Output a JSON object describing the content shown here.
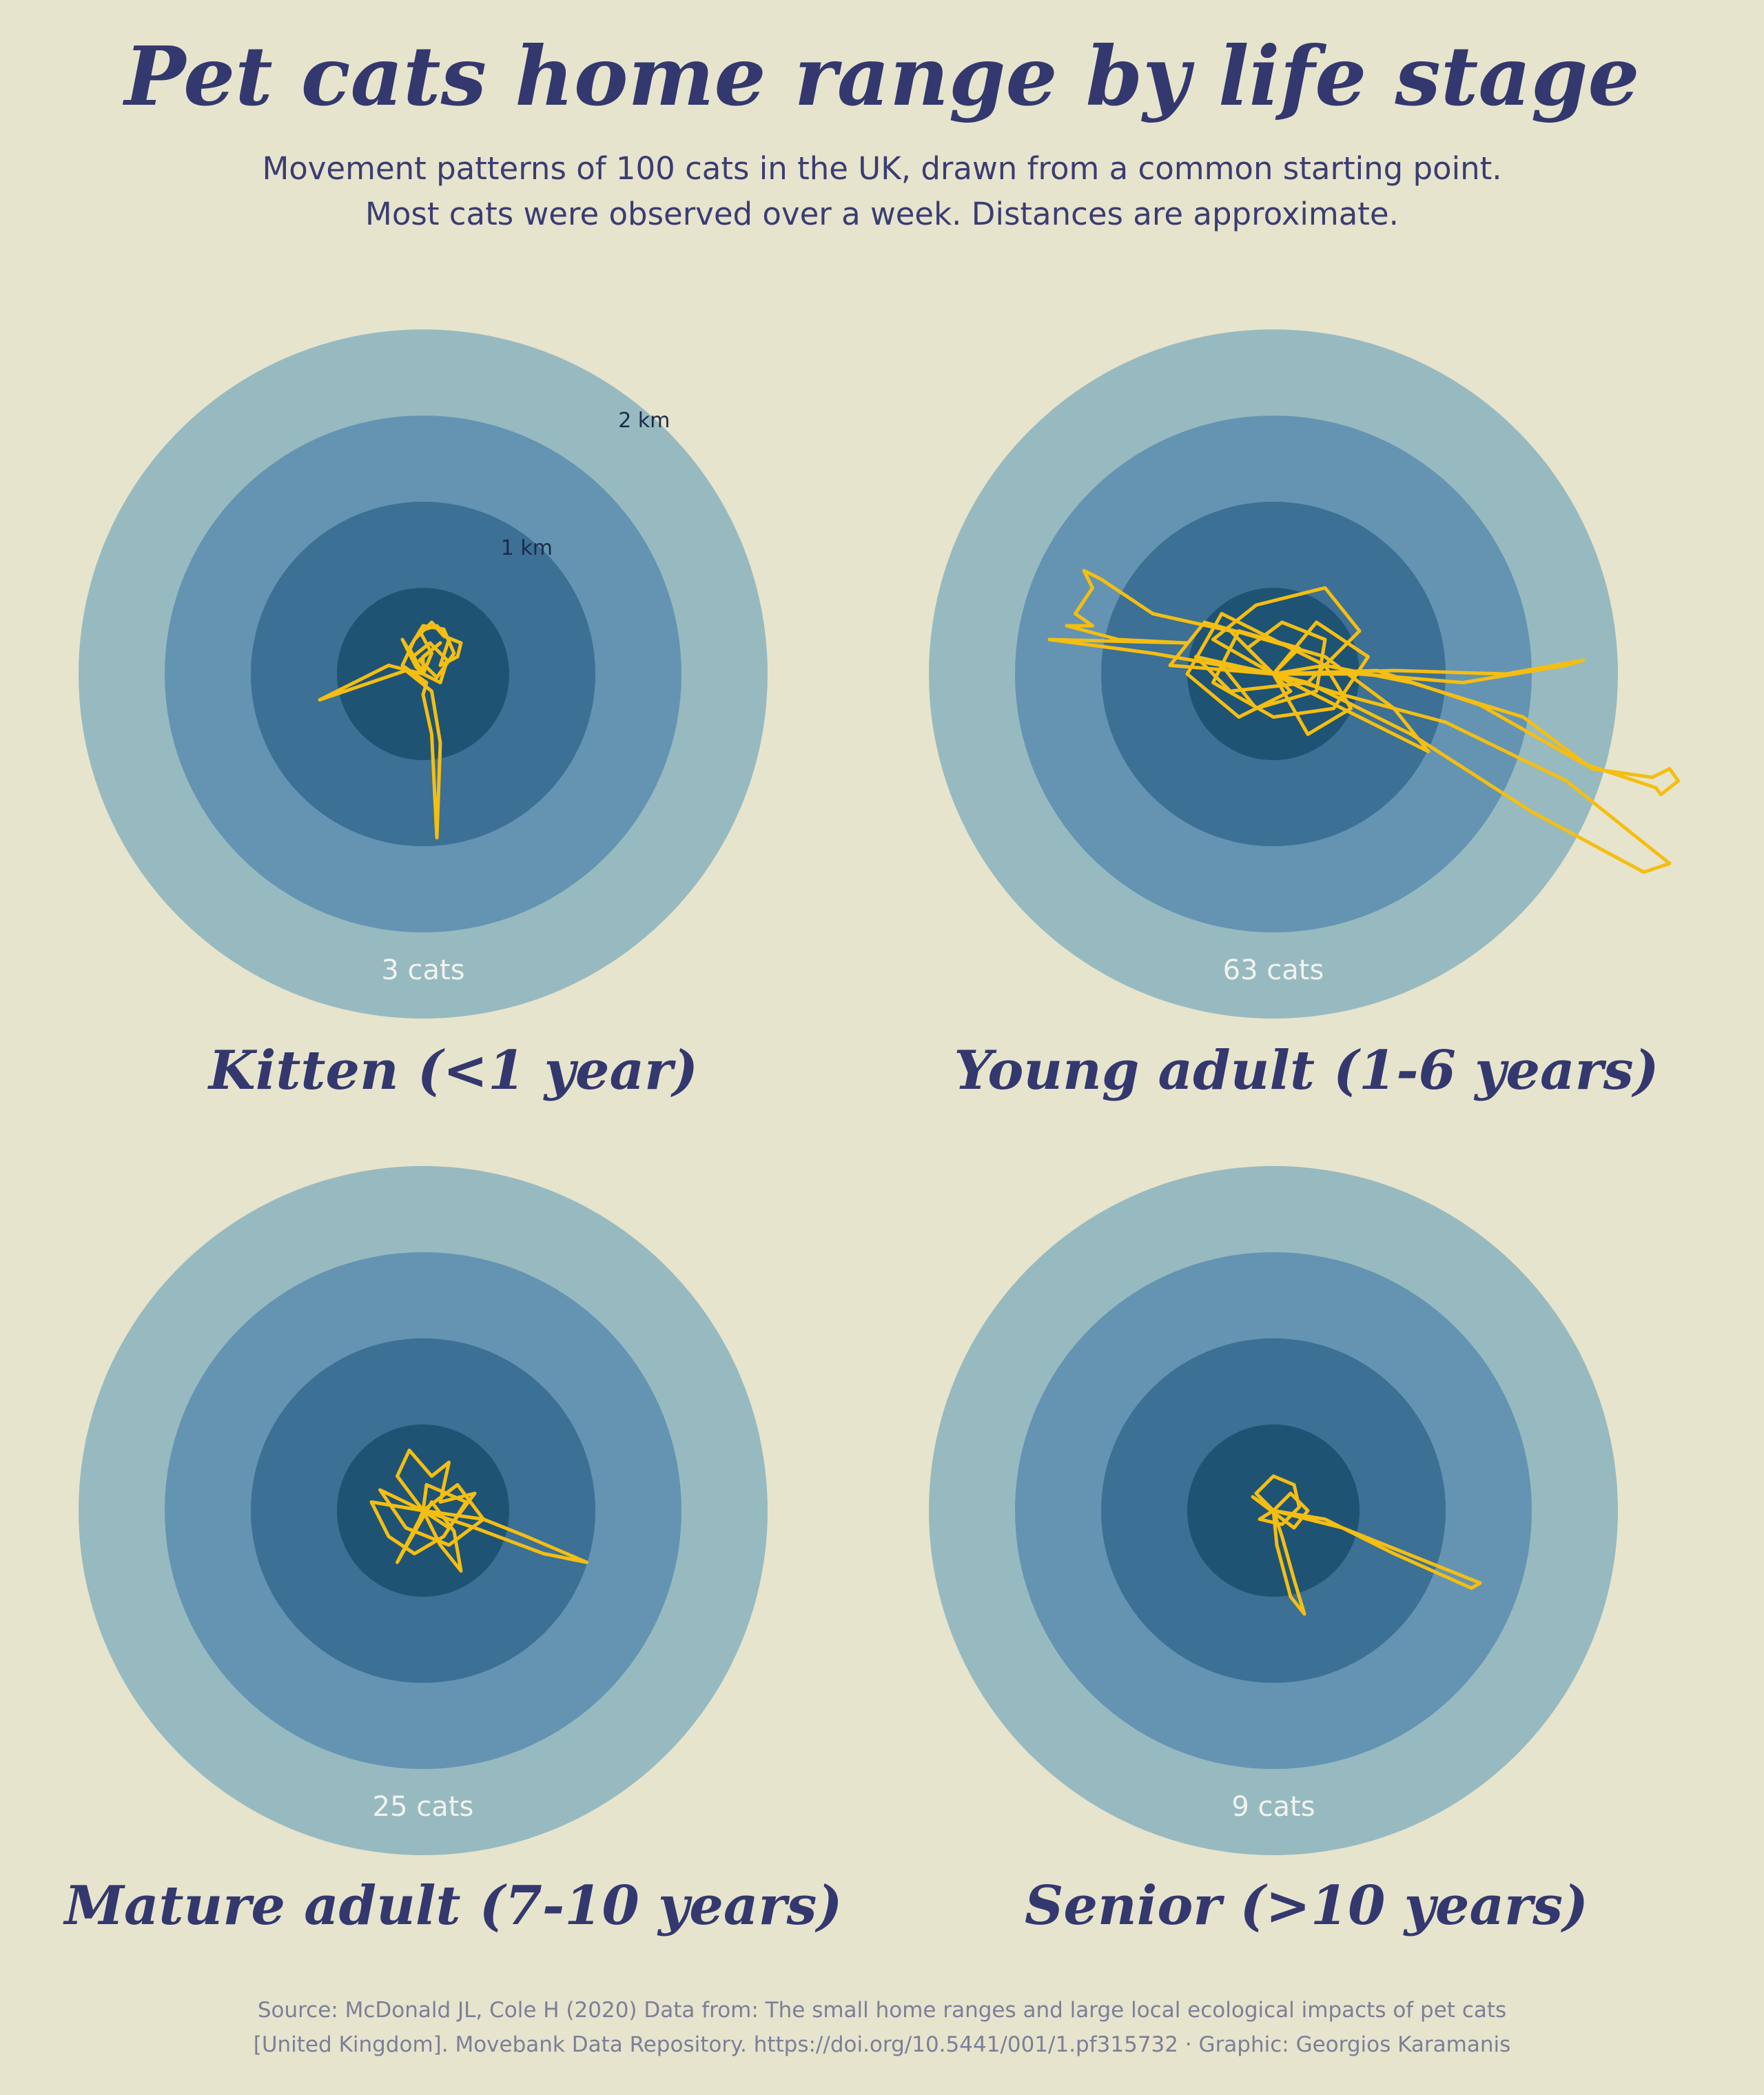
{
  "header": {
    "title": "Pet cats home range by life stage",
    "subtitle_line1": "Movement patterns of 100 cats in the UK, drawn from a common starting point.",
    "subtitle_line2": "Most cats were observed over a week. Distances are approximate."
  },
  "caption": {
    "line1": "Source: McDonald JL, Cole H (2020) Data from: The small home ranges and large local ecological impacts of pet cats",
    "line2": "[United Kingdom]. Movebank Data Repository. https://doi.org/10.5441/001/1.pf315732 · Graphic: Georgios Karamanis"
  },
  "colors": {
    "background": "#e7e4cd",
    "ring_colors": [
      "#97bac0",
      "#6494b2",
      "#3c7094",
      "#1f5373"
    ],
    "track_color": "#f4be13",
    "text_color": "#33386e"
  },
  "chart_data": {
    "type": "polar-track",
    "ring_radii_km": [
      2,
      1.5,
      1,
      0.5
    ],
    "ring_labels": [
      {
        "radius_km": 2,
        "text": "2 km"
      },
      {
        "radius_km": 1,
        "text": "1 km"
      }
    ],
    "panels": [
      {
        "label": "Kitten  (<1 year)",
        "count_label": "3 cats",
        "cats": 3,
        "tracks": [
          [
            [
              0,
              0
            ],
            [
              0.05,
              0.12
            ],
            [
              -0.02,
              0.25
            ],
            [
              0.08,
              0.28
            ],
            [
              0.15,
              0.2
            ],
            [
              0.1,
              0.05
            ],
            [
              0.2,
              0.1
            ],
            [
              0.22,
              0.18
            ],
            [
              0.12,
              0.22
            ],
            [
              0.05,
              0.3
            ],
            [
              -0.05,
              0.2
            ],
            [
              -0.12,
              0.05
            ],
            [
              0.02,
              -0.05
            ],
            [
              0.0,
              -0.12
            ],
            [
              0.05,
              -0.35
            ],
            [
              0.08,
              -0.95
            ],
            [
              0.1,
              -0.4
            ],
            [
              0.05,
              -0.1
            ],
            [
              -0.1,
              0.02
            ],
            [
              -0.6,
              -0.15
            ],
            [
              -0.2,
              0.05
            ],
            [
              0,
              0
            ]
          ],
          [
            [
              0,
              0
            ],
            [
              -0.08,
              0.15
            ],
            [
              0.0,
              0.28
            ],
            [
              0.12,
              0.26
            ],
            [
              0.18,
              0.12
            ],
            [
              0.08,
              -0.02
            ],
            [
              -0.02,
              0.08
            ],
            [
              0.1,
              0.18
            ],
            [
              0.0,
              0.1
            ],
            [
              0,
              0
            ]
          ],
          [
            [
              0,
              0
            ],
            [
              0.1,
              -0.05
            ],
            [
              0.14,
              0.08
            ],
            [
              0.04,
              0.18
            ],
            [
              -0.06,
              0.1
            ],
            [
              -0.12,
              0.2
            ],
            [
              -0.04,
              0.04
            ],
            [
              0,
              0
            ]
          ]
        ]
      },
      {
        "label": "Young adult  (1-6 years)",
        "count_label": "63 cats",
        "cats": 63,
        "tracks": [
          [
            [
              0,
              0
            ],
            [
              0.3,
              0.05
            ],
            [
              0.8,
              -0.05
            ],
            [
              1.45,
              -0.25
            ],
            [
              1.85,
              -0.55
            ],
            [
              2.2,
              -0.6
            ],
            [
              2.3,
              -0.55
            ],
            [
              2.35,
              -0.62
            ],
            [
              2.25,
              -0.7
            ],
            [
              2.22,
              -0.66
            ],
            [
              1.8,
              -0.52
            ],
            [
              1.2,
              -0.18
            ],
            [
              0.6,
              0.02
            ],
            [
              0,
              0
            ]
          ],
          [
            [
              0,
              0
            ],
            [
              0.4,
              -0.12
            ],
            [
              1.0,
              -0.28
            ],
            [
              1.7,
              -0.62
            ],
            [
              2.3,
              -1.1
            ],
            [
              2.15,
              -1.15
            ],
            [
              1.5,
              -0.8
            ],
            [
              0.8,
              -0.35
            ],
            [
              0.2,
              -0.05
            ],
            [
              0,
              0
            ]
          ],
          [
            [
              0,
              0
            ],
            [
              0.5,
              0.0
            ],
            [
              1.1,
              -0.05
            ],
            [
              1.7,
              0.05
            ],
            [
              1.8,
              0.08
            ],
            [
              1.35,
              0.0
            ],
            [
              0.7,
              0.02
            ],
            [
              0,
              0
            ]
          ],
          [
            [
              0,
              0
            ],
            [
              -0.25,
              0.25
            ],
            [
              -0.7,
              0.35
            ],
            [
              -1.0,
              0.55
            ],
            [
              -1.1,
              0.6
            ],
            [
              -1.05,
              0.5
            ],
            [
              -1.15,
              0.35
            ],
            [
              -1.05,
              0.28
            ],
            [
              -1.2,
              0.28
            ],
            [
              -0.9,
              0.2
            ],
            [
              -0.5,
              0.18
            ],
            [
              -1.3,
              0.2
            ],
            [
              -0.7,
              0.12
            ],
            [
              -0.3,
              0.05
            ],
            [
              0,
              0
            ]
          ],
          [
            [
              0,
              0
            ],
            [
              -0.35,
              0.2
            ],
            [
              -0.1,
              0.4
            ],
            [
              0.3,
              0.5
            ],
            [
              0.5,
              0.25
            ],
            [
              0.2,
              -0.05
            ],
            [
              -0.25,
              -0.1
            ],
            [
              -0.45,
              0.1
            ],
            [
              0,
              0
            ]
          ],
          [
            [
              0,
              0
            ],
            [
              0.25,
              0.3
            ],
            [
              0.55,
              0.1
            ],
            [
              0.35,
              -0.2
            ],
            [
              0.0,
              -0.25
            ],
            [
              -0.35,
              -0.05
            ],
            [
              -0.2,
              0.25
            ],
            [
              0.15,
              0.15
            ],
            [
              0,
              0
            ]
          ],
          [
            [
              0,
              0
            ],
            [
              0.2,
              -0.35
            ],
            [
              0.45,
              -0.2
            ],
            [
              0.3,
              0.05
            ],
            [
              -0.3,
              0.35
            ],
            [
              -0.5,
              0.0
            ],
            [
              -0.2,
              -0.25
            ],
            [
              0.1,
              -0.1
            ],
            [
              0,
              0
            ]
          ],
          [
            [
              0,
              0
            ],
            [
              -0.15,
              0.15
            ],
            [
              0.05,
              0.3
            ],
            [
              0.3,
              0.2
            ],
            [
              0.25,
              -0.1
            ],
            [
              -0.1,
              -0.2
            ],
            [
              -0.3,
              0.05
            ],
            [
              0,
              0
            ]
          ],
          [
            [
              0,
              0
            ],
            [
              0.6,
              -0.3
            ],
            [
              0.9,
              -0.45
            ],
            [
              0.7,
              -0.2
            ],
            [
              0.3,
              0.1
            ],
            [
              -0.4,
              0.3
            ],
            [
              -0.6,
              0.05
            ],
            [
              0,
              0
            ]
          ]
        ]
      },
      {
        "label": "Mature adult  (7-10 years)",
        "count_label": "25 cats",
        "cats": 25,
        "tracks": [
          [
            [
              0,
              0
            ],
            [
              0.3,
              -0.1
            ],
            [
              0.7,
              -0.25
            ],
            [
              0.95,
              -0.3
            ],
            [
              0.6,
              -0.15
            ],
            [
              0.35,
              -0.05
            ],
            [
              0,
              0
            ]
          ],
          [
            [
              0,
              0
            ],
            [
              0.1,
              -0.2
            ],
            [
              0.22,
              -0.35
            ],
            [
              0.18,
              -0.12
            ],
            [
              0.05,
              0.05
            ],
            [
              -0.15,
              -0.3
            ],
            [
              -0.02,
              -0.05
            ],
            [
              0,
              0
            ]
          ],
          [
            [
              0,
              0
            ],
            [
              -0.15,
              0.2
            ],
            [
              -0.08,
              0.35
            ],
            [
              0.05,
              0.2
            ],
            [
              0.15,
              0.28
            ],
            [
              0.1,
              0.05
            ],
            [
              0.3,
              0.1
            ],
            [
              0.15,
              -0.1
            ],
            [
              0,
              0
            ]
          ],
          [
            [
              0,
              0
            ],
            [
              -0.3,
              0.05
            ],
            [
              -0.2,
              -0.15
            ],
            [
              -0.05,
              -0.25
            ],
            [
              0.12,
              -0.15
            ],
            [
              0.25,
              0.05
            ],
            [
              0.02,
              0.15
            ],
            [
              0,
              0
            ]
          ],
          [
            [
              0,
              0
            ],
            [
              0.2,
              0.15
            ],
            [
              0.35,
              -0.05
            ],
            [
              0.15,
              -0.2
            ],
            [
              -0.1,
              -0.1
            ],
            [
              -0.25,
              0.12
            ],
            [
              0,
              0
            ]
          ]
        ]
      },
      {
        "label": "Senior  (>10 years)",
        "count_label": "9 cats",
        "cats": 9,
        "tracks": [
          [
            [
              0,
              0
            ],
            [
              0.4,
              -0.1
            ],
            [
              0.9,
              -0.3
            ],
            [
              1.2,
              -0.42
            ],
            [
              1.15,
              -0.45
            ],
            [
              0.7,
              -0.25
            ],
            [
              0.3,
              -0.05
            ],
            [
              0,
              0
            ]
          ],
          [
            [
              0,
              0
            ],
            [
              0.02,
              -0.2
            ],
            [
              0.1,
              -0.5
            ],
            [
              0.18,
              -0.6
            ],
            [
              0.12,
              -0.4
            ],
            [
              0.05,
              -0.15
            ],
            [
              0,
              0
            ]
          ],
          [
            [
              0,
              0
            ],
            [
              -0.1,
              0.1
            ],
            [
              0.0,
              0.2
            ],
            [
              0.12,
              0.15
            ],
            [
              0.15,
              0.02
            ],
            [
              0.05,
              -0.08
            ],
            [
              -0.08,
              -0.05
            ],
            [
              0,
              0
            ]
          ],
          [
            [
              0,
              0
            ],
            [
              0.1,
              0.1
            ],
            [
              0.2,
              0.0
            ],
            [
              0.12,
              -0.1
            ],
            [
              -0.12,
              0.08
            ],
            [
              0,
              0
            ]
          ]
        ]
      }
    ]
  }
}
